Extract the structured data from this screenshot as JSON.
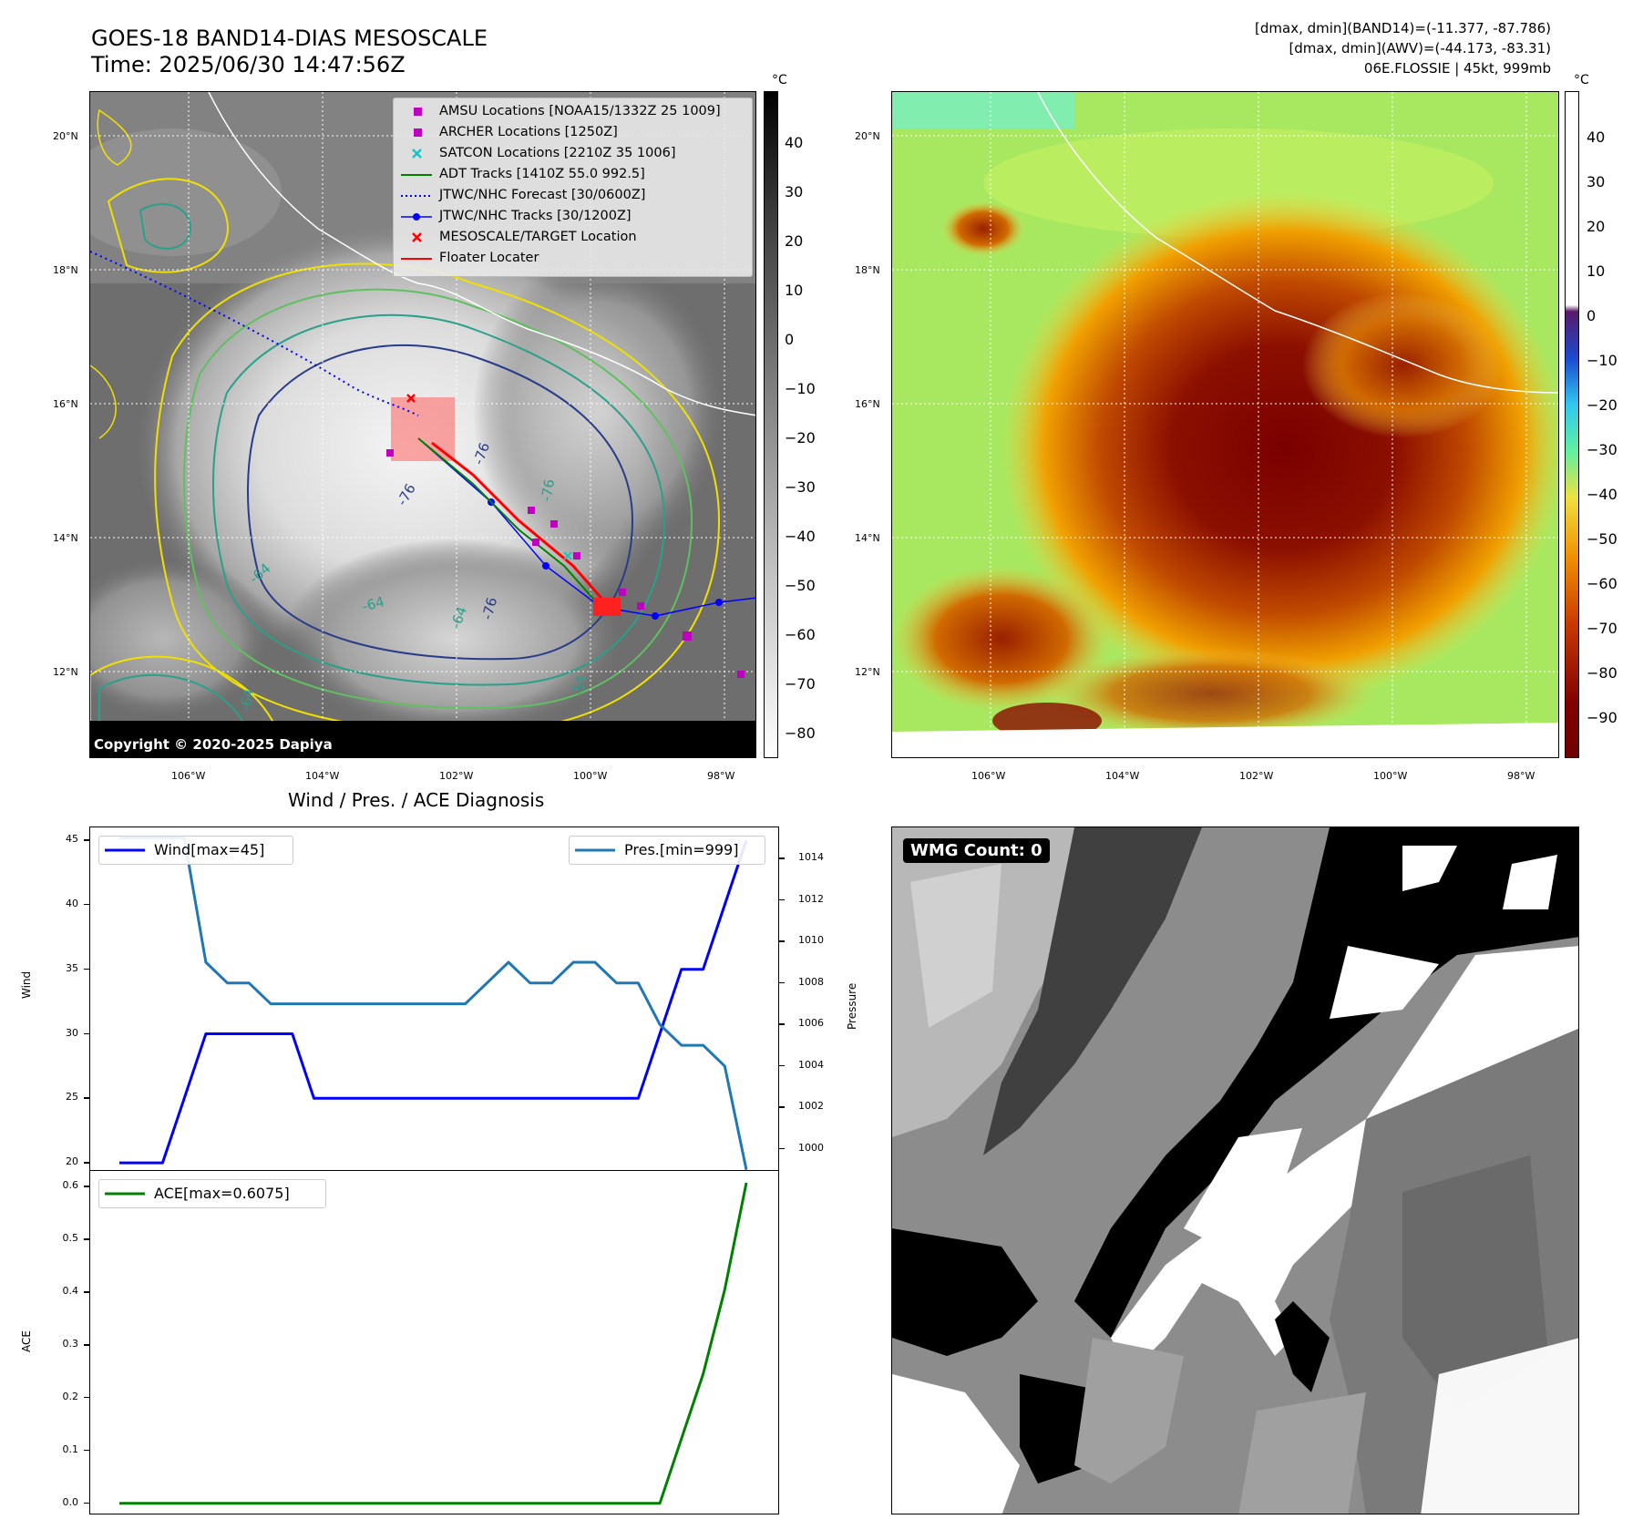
{
  "header": {
    "title_line1": "GOES-18 BAND14-DIAS MESOSCALE",
    "title_line2": "Time: 2025/06/30 14:47:56Z",
    "info_line1": "[dmax, dmin](BAND14)=(-11.377, -87.786)",
    "info_line2": "[dmax, dmin](AWV)=(-44.173, -83.31)",
    "info_line3": "06E.FLOSSIE | 45kt, 999mb"
  },
  "map_ir": {
    "lat_labels": [
      "20°N",
      "18°N",
      "16°N",
      "14°N",
      "12°N"
    ],
    "lon_labels": [
      "106°W",
      "104°W",
      "102°W",
      "100°W",
      "98°W"
    ],
    "copyright": "Copyright © 2020-2025 Dapiya",
    "contour_labels": [
      "-76",
      "-76",
      "-76",
      "-64",
      "-64",
      "-64",
      "-76",
      "-64",
      "-54"
    ],
    "colorbar": {
      "unit": "°C",
      "ticks": [
        "40",
        "30",
        "20",
        "10",
        "0",
        "−10",
        "−20",
        "−30",
        "−40",
        "−50",
        "−60",
        "−70",
        "−80"
      ]
    },
    "legend": [
      {
        "icon": "square-marker-icon",
        "color": "#c000c0",
        "label": "AMSU Locations [NOAA15/1332Z 25 1009]"
      },
      {
        "icon": "square-marker-icon",
        "color": "#c000c0",
        "label": "ARCHER Locations [1250Z]"
      },
      {
        "icon": "x-marker-icon",
        "color": "#20c0c0",
        "label": "SATCON Locations [2210Z 35 1006]"
      },
      {
        "icon": "solid-line-icon",
        "color": "#008000",
        "label": "ADT Tracks [1410Z 55.0 992.5]"
      },
      {
        "icon": "dotted-line-icon",
        "color": "#0000ff",
        "label": "JTWC/NHC Forecast [30/0600Z]"
      },
      {
        "icon": "dot-line-icon",
        "color": "#0000ff",
        "label": "JTWC/NHC Tracks [30/1200Z]"
      },
      {
        "icon": "x-marker-icon",
        "color": "#ff0000",
        "label": "MESOSCALE/TARGET Location"
      },
      {
        "icon": "solid-line-icon",
        "color": "#ff0000",
        "label": "Floater Locater"
      }
    ]
  },
  "map_awv": {
    "lat_labels": [
      "20°N",
      "18°N",
      "16°N",
      "14°N",
      "12°N"
    ],
    "lon_labels": [
      "106°W",
      "104°W",
      "102°W",
      "100°W",
      "98°W"
    ],
    "colorbar": {
      "unit": "°C",
      "ticks": [
        "40",
        "30",
        "20",
        "10",
        "0",
        "−10",
        "−20",
        "−30",
        "−40",
        "−50",
        "−60",
        "−70",
        "−80",
        "−90"
      ]
    }
  },
  "wmg": {
    "count_label": "WMG Count: 0"
  },
  "chart_data": [
    {
      "type": "line",
      "title": "Wind / Pres. / ACE Diagnosis",
      "ylabel": "Wind",
      "y2label": "Pressure",
      "x": [
        0,
        1,
        2,
        3,
        4,
        5,
        6,
        7,
        8,
        9,
        10,
        11,
        12,
        13,
        14,
        15,
        16,
        17,
        18,
        19,
        20,
        21,
        22,
        23,
        24,
        25,
        26,
        27,
        28,
        29
      ],
      "ylim": [
        19.3,
        46
      ],
      "y2lim": [
        998.9,
        1015.5
      ],
      "y_ticks": [
        "45",
        "40",
        "35",
        "30",
        "25",
        "20"
      ],
      "y2_ticks": [
        "1014",
        "1012",
        "1010",
        "1008",
        "1006",
        "1004",
        "1002",
        "1000"
      ],
      "series": [
        {
          "name": "Wind[max=45]",
          "axis": "left",
          "color": "#0000ff",
          "values": [
            20,
            20,
            20,
            25,
            30,
            30,
            30,
            30,
            30,
            25,
            25,
            25,
            25,
            25,
            25,
            25,
            25,
            25,
            25,
            25,
            25,
            25,
            25,
            25,
            25,
            30,
            35,
            35,
            40,
            45
          ]
        },
        {
          "name": "Pres.[min=999]",
          "axis": "right",
          "color": "#1f77b4",
          "values": [
            1015,
            1015,
            1015,
            1015,
            1009,
            1008,
            1008,
            1007,
            1007,
            1007,
            1007,
            1007,
            1007,
            1007,
            1007,
            1007,
            1007,
            1008,
            1009,
            1008,
            1008,
            1009,
            1009,
            1008,
            1008,
            1006,
            1005,
            1005,
            1004,
            999
          ]
        }
      ]
    },
    {
      "type": "line",
      "ylabel": "ACE",
      "x": [
        0,
        1,
        2,
        3,
        4,
        5,
        6,
        7,
        8,
        9,
        10,
        11,
        12,
        13,
        14,
        15,
        16,
        17,
        18,
        19,
        20,
        21,
        22,
        23,
        24,
        25,
        26,
        27,
        28,
        29
      ],
      "ylim": [
        -0.023,
        0.63
      ],
      "y_ticks": [
        "0.6",
        "0.5",
        "0.4",
        "0.3",
        "0.2",
        "0.1",
        "0.0"
      ],
      "series": [
        {
          "name": "ACE[max=0.6075]",
          "color": "#008000",
          "values": [
            0,
            0,
            0,
            0,
            0,
            0,
            0,
            0,
            0,
            0,
            0,
            0,
            0,
            0,
            0,
            0,
            0,
            0,
            0,
            0,
            0,
            0,
            0,
            0,
            0,
            0,
            0.1225,
            0.245,
            0.405,
            0.6075
          ]
        }
      ]
    }
  ]
}
